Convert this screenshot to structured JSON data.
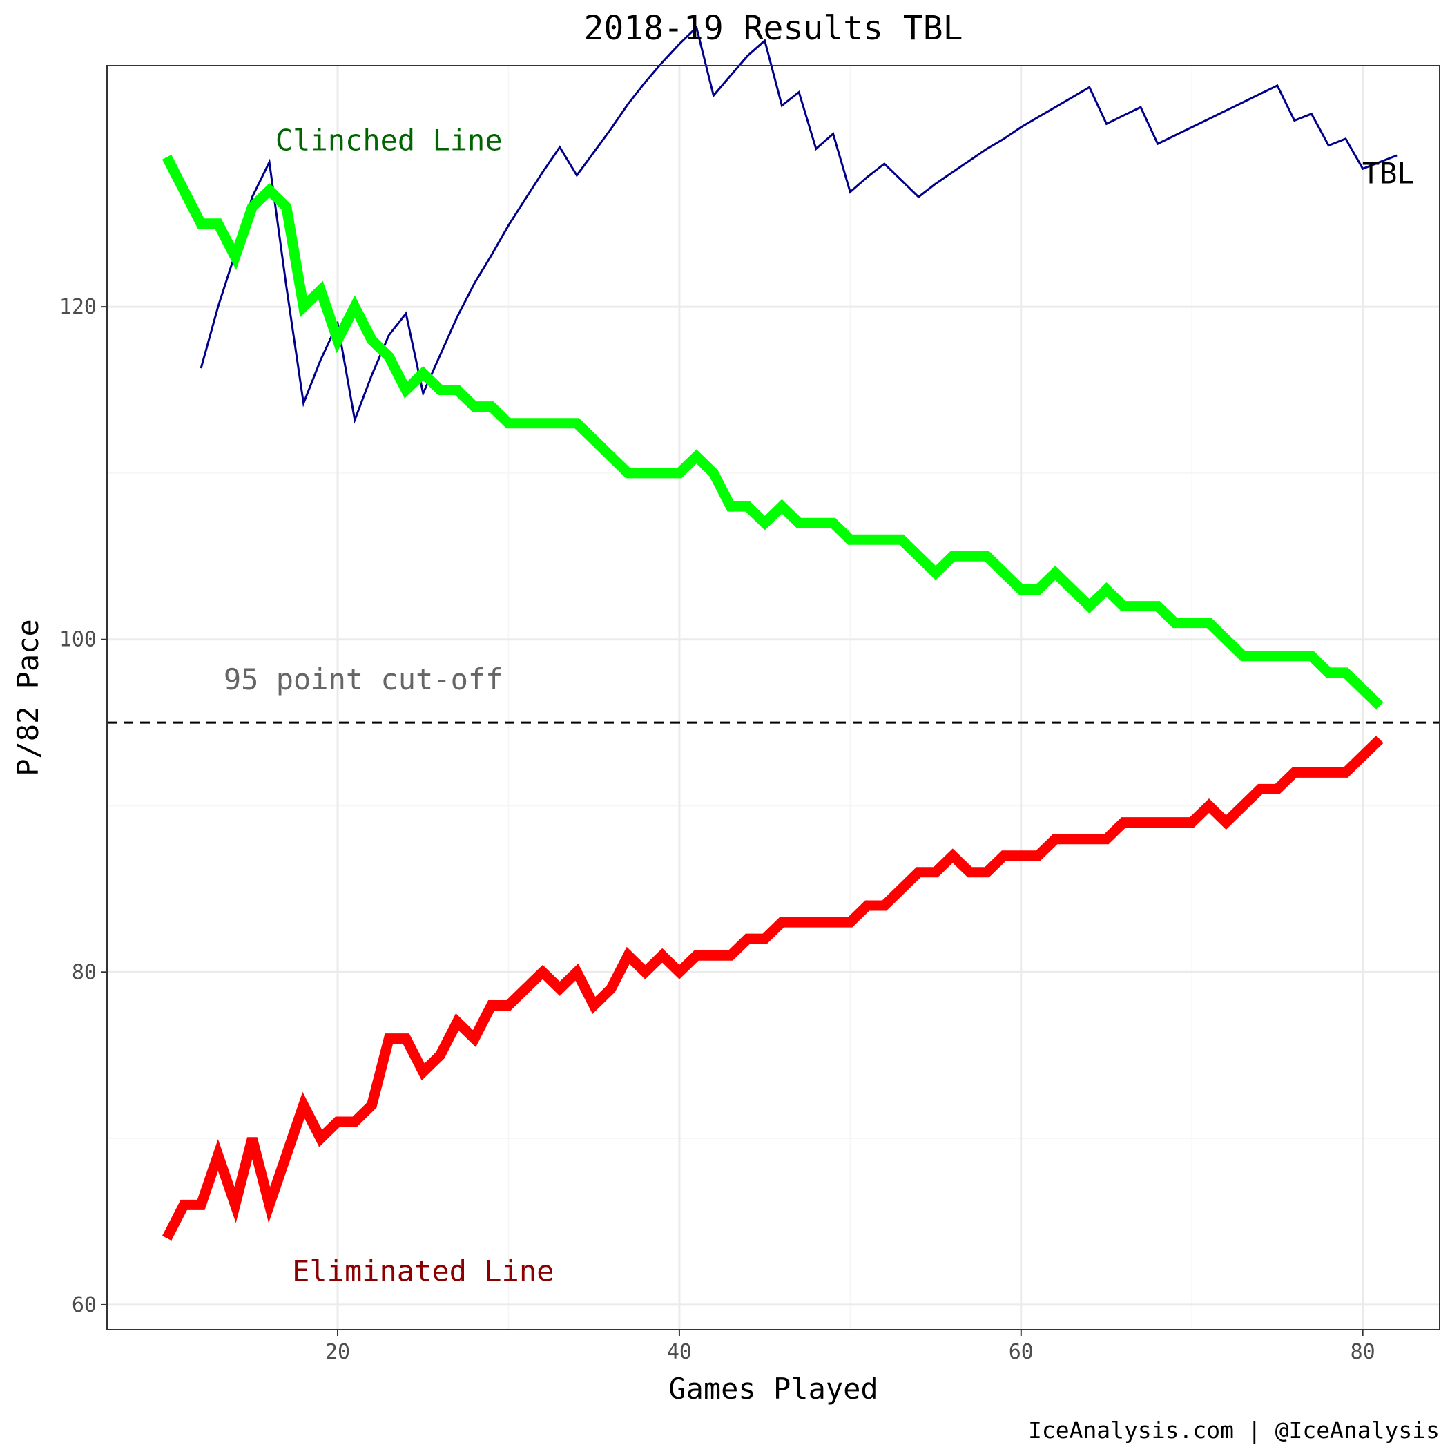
{
  "chart_data": {
    "type": "line",
    "title": "2018-19 Results TBL",
    "xlabel": "Games Played",
    "ylabel": "P/82 Pace",
    "xlim": [
      6.5,
      84.5
    ],
    "ylim": [
      58.5,
      134.5
    ],
    "x_ticks": [
      20,
      40,
      60,
      80
    ],
    "y_ticks": [
      60,
      80,
      100,
      120
    ],
    "grid": true,
    "caption": "IceAnalysis.com | @IceAnalysis",
    "cutoff": {
      "value": 95,
      "label": "95 point cut-off",
      "color": "#666666"
    },
    "series": [
      {
        "name": "TBL",
        "color": "#00008b",
        "label_at": [
          81.5,
          128
        ],
        "label_color": "#000000",
        "x": [
          12,
          13,
          14,
          15,
          16,
          17,
          18,
          19,
          20,
          21,
          22,
          23,
          24,
          25,
          26,
          27,
          28,
          29,
          30,
          31,
          32,
          33,
          34,
          35,
          36,
          37,
          38,
          39,
          40,
          41,
          42,
          43,
          44,
          45,
          46,
          47,
          48,
          49,
          50,
          51,
          52,
          53,
          54,
          55,
          56,
          57,
          58,
          59,
          60,
          61,
          62,
          63,
          64,
          65,
          66,
          67,
          68,
          69,
          70,
          71,
          72,
          73,
          74,
          75,
          76,
          77,
          78,
          79,
          80,
          81,
          82
        ],
        "values": [
          116.3,
          120,
          123.2,
          126.6,
          128.7,
          121.2,
          114.2,
          116.8,
          119,
          113.2,
          115.9,
          118.3,
          119.6,
          114.8,
          117.1,
          119.4,
          121.4,
          123.1,
          124.9,
          126.5,
          128.1,
          129.6,
          127.9,
          129.3,
          130.7,
          132.2,
          133.5,
          134.7,
          135.8,
          136.8,
          132.7,
          133.9,
          135.1,
          136.0,
          132.1,
          132.9,
          129.5,
          130.4,
          126.9,
          127.8,
          128.6,
          127.6,
          126.6,
          127.4,
          128.1,
          128.8,
          129.5,
          130.1,
          130.8,
          131.4,
          132.0,
          132.6,
          133.2,
          131.0,
          131.5,
          132.0,
          129.8,
          130.3,
          130.8,
          131.3,
          131.8,
          132.3,
          132.8,
          133.3,
          131.2,
          131.6,
          129.7,
          130.1,
          128.3,
          128.7,
          129.1
        ]
      },
      {
        "name": "Clinched Line",
        "color": "#00ff00",
        "label_at": [
          23,
          130
        ],
        "label_color": "#006400",
        "x": [
          10,
          11,
          12,
          13,
          14,
          15,
          16,
          17,
          18,
          19,
          20,
          21,
          22,
          23,
          24,
          25,
          26,
          27,
          28,
          29,
          30,
          31,
          32,
          33,
          34,
          35,
          36,
          37,
          38,
          39,
          40,
          41,
          42,
          43,
          44,
          45,
          46,
          47,
          48,
          49,
          50,
          51,
          52,
          53,
          54,
          55,
          56,
          57,
          58,
          59,
          60,
          61,
          62,
          63,
          64,
          65,
          66,
          67,
          68,
          69,
          70,
          71,
          72,
          73,
          74,
          75,
          76,
          77,
          78,
          79,
          80,
          81
        ],
        "values": [
          129,
          127,
          125,
          125,
          123,
          126,
          127,
          126,
          120,
          121,
          118,
          120,
          118,
          117,
          115,
          116,
          115,
          115,
          114,
          114,
          113,
          113,
          113,
          113,
          113,
          112,
          111,
          110,
          110,
          110,
          110,
          111,
          110,
          108,
          108,
          107,
          108,
          107,
          107,
          107,
          106,
          106,
          106,
          106,
          105,
          104,
          105,
          105,
          105,
          104,
          103,
          103,
          104,
          103,
          102,
          103,
          102,
          102,
          102,
          101,
          101,
          101,
          100,
          99,
          99,
          99,
          99,
          99,
          98,
          98,
          97,
          96
        ]
      },
      {
        "name": "Eliminated Line",
        "color": "#ff0000",
        "label_at": [
          25,
          62
        ],
        "label_color": "#8b0000",
        "x": [
          10,
          11,
          12,
          13,
          14,
          15,
          16,
          17,
          18,
          19,
          20,
          21,
          22,
          23,
          24,
          25,
          26,
          27,
          28,
          29,
          30,
          31,
          32,
          33,
          34,
          35,
          36,
          37,
          38,
          39,
          40,
          41,
          42,
          43,
          44,
          45,
          46,
          47,
          48,
          49,
          50,
          51,
          52,
          53,
          54,
          55,
          56,
          57,
          58,
          59,
          60,
          61,
          62,
          63,
          64,
          65,
          66,
          67,
          68,
          69,
          70,
          71,
          72,
          73,
          74,
          75,
          76,
          77,
          78,
          79,
          80,
          81
        ],
        "values": [
          64,
          66,
          66,
          69,
          66,
          70,
          66,
          69,
          72,
          70,
          71,
          71,
          72,
          76,
          76,
          74,
          75,
          77,
          76,
          78,
          78,
          79,
          80,
          79,
          80,
          78,
          79,
          81,
          80,
          81,
          80,
          81,
          81,
          81,
          82,
          82,
          83,
          83,
          83,
          83,
          83,
          84,
          84,
          85,
          86,
          86,
          87,
          86,
          86,
          87,
          87,
          87,
          88,
          88,
          88,
          88,
          89,
          89,
          89,
          89,
          89,
          90,
          89,
          90,
          91,
          91,
          92,
          92,
          92,
          92,
          93,
          94
        ]
      }
    ]
  }
}
